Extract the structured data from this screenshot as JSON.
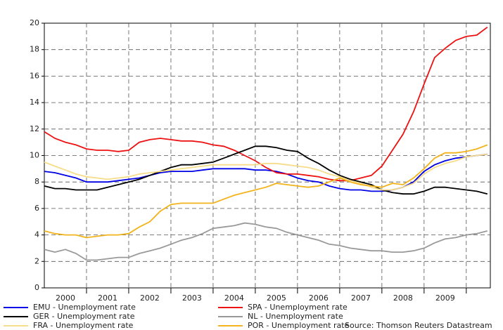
{
  "chart_data": {
    "type": "line",
    "source": "Source: Thomson Reuters Datastream",
    "x": [
      2000,
      2000.25,
      2000.5,
      2000.75,
      2001,
      2001.25,
      2001.5,
      2001.75,
      2002,
      2002.25,
      2002.5,
      2002.75,
      2003,
      2003.25,
      2003.5,
      2003.75,
      2004,
      2004.25,
      2004.5,
      2004.75,
      2005,
      2005.25,
      2005.5,
      2005.75,
      2006,
      2006.25,
      2006.5,
      2006.75,
      2007,
      2007.25,
      2007.5,
      2007.75,
      2008,
      2008.25,
      2008.5,
      2008.75,
      2009,
      2009.25,
      2009.5,
      2009.75,
      2010,
      2010.25,
      2010.5
    ],
    "xlim": [
      2000,
      2010.57
    ],
    "xticks": [
      {
        "value": 2000.5,
        "label": "2000"
      },
      {
        "value": 2001.5,
        "label": "2001"
      },
      {
        "value": 2002.5,
        "label": "2002"
      },
      {
        "value": 2003.5,
        "label": "2003"
      },
      {
        "value": 2004.5,
        "label": "2004"
      },
      {
        "value": 2005.5,
        "label": "2005"
      },
      {
        "value": 2006.5,
        "label": "2006"
      },
      {
        "value": 2007.5,
        "label": "2007"
      },
      {
        "value": 2008.5,
        "label": "2008"
      },
      {
        "value": 2009.5,
        "label": "2009"
      }
    ],
    "xgrid": [
      2001,
      2002,
      2003,
      2004,
      2005,
      2006,
      2007,
      2008,
      2009,
      2010
    ],
    "ylim": [
      0,
      20
    ],
    "yticks": [
      0,
      2,
      4,
      6,
      8,
      10,
      12,
      14,
      16,
      18,
      20
    ],
    "grid": true,
    "series": [
      {
        "name": "EMU - Unemployment rate",
        "color": "#0000e6",
        "values": [
          8.8,
          8.7,
          8.5,
          8.3,
          8.0,
          8.0,
          8.0,
          8.1,
          8.2,
          8.3,
          8.5,
          8.7,
          8.8,
          8.8,
          8.8,
          8.9,
          9.0,
          9.0,
          9.0,
          9.0,
          8.9,
          8.9,
          8.8,
          8.6,
          8.3,
          8.1,
          8.0,
          7.7,
          7.5,
          7.4,
          7.4,
          7.3,
          7.3,
          7.4,
          7.6,
          8.0,
          8.8,
          9.3,
          9.6,
          9.8,
          9.9,
          10.0,
          10.1
        ]
      },
      {
        "name": "SPA - Unemployment rate",
        "color": "#ee1111",
        "values": [
          11.8,
          11.3,
          11.0,
          10.8,
          10.5,
          10.4,
          10.4,
          10.3,
          10.4,
          11.0,
          11.2,
          11.3,
          11.2,
          11.1,
          11.1,
          11.0,
          10.8,
          10.7,
          10.4,
          10.0,
          9.6,
          9.1,
          8.7,
          8.6,
          8.6,
          8.5,
          8.4,
          8.2,
          8.1,
          8.1,
          8.3,
          8.5,
          9.2,
          10.4,
          11.6,
          13.3,
          15.4,
          17.4,
          18.1,
          18.7,
          19.0,
          19.1,
          19.7
        ]
      },
      {
        "name": "GER - Unemployment rate",
        "color": "#000000",
        "values": [
          7.7,
          7.5,
          7.5,
          7.4,
          7.4,
          7.4,
          7.6,
          7.8,
          8.0,
          8.2,
          8.5,
          8.8,
          9.1,
          9.3,
          9.3,
          9.4,
          9.5,
          9.8,
          10.1,
          10.4,
          10.7,
          10.7,
          10.6,
          10.4,
          10.3,
          9.8,
          9.4,
          8.9,
          8.5,
          8.2,
          8.0,
          7.8,
          7.4,
          7.2,
          7.1,
          7.1,
          7.3,
          7.6,
          7.6,
          7.5,
          7.4,
          7.3,
          7.1
        ]
      },
      {
        "name": "NL - Unemployment rate",
        "color": "#999999",
        "values": [
          2.9,
          2.7,
          2.9,
          2.6,
          2.1,
          2.1,
          2.2,
          2.3,
          2.3,
          2.6,
          2.8,
          3.0,
          3.3,
          3.6,
          3.8,
          4.1,
          4.5,
          4.6,
          4.7,
          4.9,
          4.8,
          4.6,
          4.5,
          4.2,
          4.0,
          3.8,
          3.6,
          3.3,
          3.2,
          3.0,
          2.9,
          2.8,
          2.8,
          2.7,
          2.7,
          2.8,
          3.0,
          3.4,
          3.7,
          3.8,
          4.0,
          4.1,
          4.3
        ]
      },
      {
        "name": "FRA - Unemployment rate",
        "color": "#f7dc8a",
        "values": [
          9.5,
          9.2,
          8.9,
          8.6,
          8.4,
          8.3,
          8.2,
          8.3,
          8.4,
          8.6,
          8.7,
          8.8,
          8.9,
          9.0,
          9.1,
          9.2,
          9.3,
          9.3,
          9.3,
          9.3,
          9.3,
          9.4,
          9.4,
          9.3,
          9.2,
          9.1,
          8.9,
          8.6,
          8.4,
          8.1,
          7.9,
          7.6,
          7.4,
          7.4,
          7.6,
          7.9,
          8.6,
          9.1,
          9.4,
          9.6,
          9.9,
          10.0,
          10.1
        ]
      },
      {
        "name": "POR - Unemployment rate",
        "color": "#f2b31c",
        "values": [
          4.3,
          4.1,
          4.0,
          4.0,
          3.8,
          3.9,
          4.0,
          4.0,
          4.1,
          4.6,
          5.0,
          5.8,
          6.3,
          6.4,
          6.4,
          6.4,
          6.4,
          6.7,
          7.0,
          7.2,
          7.4,
          7.6,
          7.9,
          7.8,
          7.7,
          7.6,
          7.7,
          8.0,
          8.3,
          8.0,
          7.8,
          7.7,
          7.6,
          7.9,
          7.8,
          8.3,
          9.0,
          9.8,
          10.2,
          10.2,
          10.3,
          10.5,
          10.8
        ]
      }
    ]
  }
}
